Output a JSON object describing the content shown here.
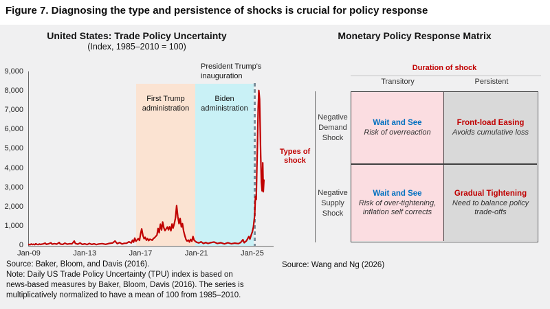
{
  "figure_title": "Figure 7. Diagnosing the type and persistence of shocks is crucial for policy response",
  "left_chart": {
    "source": "Source: Baker, Bloom, and Davis (2016).",
    "note_lines": [
      "Note: Daily US Trade Policy Uncertainty (TPU) index is based on",
      "news-based measures by Baker, Bloom, Davis (2016). The series is",
      "multiplicatively normalized to have a mean of 100 from 1985–2010."
    ]
  },
  "chart_data": {
    "type": "line",
    "title": "United States: Trade Policy Uncertainty",
    "subtitle": "(Index, 1985–2010 = 100)",
    "ylim": [
      0,
      9000
    ],
    "y_tick_step": 1000,
    "y_tick_labels": [
      "0",
      "1,000",
      "2,000",
      "3,000",
      "4,000",
      "5,000",
      "6,000",
      "7,000",
      "8,000",
      "9,000"
    ],
    "x_tick_labels": [
      "Jan-09",
      "Jan-13",
      "Jan-17",
      "Jan-21",
      "Jan-25"
    ],
    "x_tick_years": [
      2009,
      2013,
      2017,
      2021,
      2025
    ],
    "grid": false,
    "line_color": "#c00000",
    "regions": [
      {
        "label": "First Trump\nadministration",
        "from": 2016.7,
        "to": 2020.92,
        "color": "#fbe3d2"
      },
      {
        "label": "Biden\nadministration",
        "from": 2020.92,
        "to": 2025.1,
        "color": "#c9f1f6"
      }
    ],
    "vline": {
      "label": "President Trump's\ninauguration",
      "x": 2025.17,
      "color": "#7b8e9a"
    },
    "series": [
      {
        "name": "Daily US Trade Policy Uncertainty (TPU) index",
        "points": [
          [
            2009.0,
            75
          ],
          [
            2009.08,
            55
          ],
          [
            2009.17,
            95
          ],
          [
            2009.25,
            65
          ],
          [
            2009.33,
            85
          ],
          [
            2009.42,
            60
          ],
          [
            2009.5,
            110
          ],
          [
            2009.58,
            75
          ],
          [
            2009.67,
            65
          ],
          [
            2009.75,
            95
          ],
          [
            2009.83,
            70
          ],
          [
            2009.92,
            85
          ],
          [
            2010.0,
            95
          ],
          [
            2010.17,
            140
          ],
          [
            2010.25,
            80
          ],
          [
            2010.42,
            105
          ],
          [
            2010.58,
            155
          ],
          [
            2010.67,
            85
          ],
          [
            2010.83,
            115
          ],
          [
            2011.0,
            90
          ],
          [
            2011.17,
            170
          ],
          [
            2011.25,
            95
          ],
          [
            2011.42,
            75
          ],
          [
            2011.58,
            140
          ],
          [
            2011.75,
            85
          ],
          [
            2011.92,
            110
          ],
          [
            2012.08,
            100
          ],
          [
            2012.25,
            245
          ],
          [
            2012.33,
            120
          ],
          [
            2012.5,
            85
          ],
          [
            2012.67,
            150
          ],
          [
            2012.83,
            75
          ],
          [
            2013.0,
            105
          ],
          [
            2013.17,
            65
          ],
          [
            2013.33,
            125
          ],
          [
            2013.5,
            75
          ],
          [
            2013.67,
            105
          ],
          [
            2013.83,
            65
          ],
          [
            2014.0,
            95
          ],
          [
            2014.25,
            115
          ],
          [
            2014.5,
            80
          ],
          [
            2014.75,
            125
          ],
          [
            2015.0,
            150
          ],
          [
            2015.17,
            250
          ],
          [
            2015.33,
            110
          ],
          [
            2015.5,
            170
          ],
          [
            2015.67,
            95
          ],
          [
            2015.83,
            130
          ],
          [
            2016.0,
            135
          ],
          [
            2016.17,
            210
          ],
          [
            2016.33,
            150
          ],
          [
            2016.42,
            290
          ],
          [
            2016.5,
            190
          ],
          [
            2016.58,
            400
          ],
          [
            2016.67,
            240
          ],
          [
            2016.83,
            370
          ],
          [
            2016.92,
            280
          ],
          [
            2017.0,
            620
          ],
          [
            2017.08,
            880
          ],
          [
            2017.17,
            520
          ],
          [
            2017.25,
            370
          ],
          [
            2017.33,
            440
          ],
          [
            2017.42,
            290
          ],
          [
            2017.5,
            370
          ],
          [
            2017.58,
            270
          ],
          [
            2017.67,
            340
          ],
          [
            2017.83,
            290
          ],
          [
            2017.92,
            380
          ],
          [
            2018.0,
            420
          ],
          [
            2018.17,
            560
          ],
          [
            2018.25,
            900
          ],
          [
            2018.33,
            680
          ],
          [
            2018.42,
            1120
          ],
          [
            2018.5,
            820
          ],
          [
            2018.58,
            1230
          ],
          [
            2018.67,
            920
          ],
          [
            2018.75,
            790
          ],
          [
            2018.92,
            980
          ],
          [
            2019.0,
            830
          ],
          [
            2019.08,
            990
          ],
          [
            2019.17,
            780
          ],
          [
            2019.25,
            1130
          ],
          [
            2019.33,
            920
          ],
          [
            2019.42,
            1180
          ],
          [
            2019.5,
            1450
          ],
          [
            2019.58,
            2080
          ],
          [
            2019.67,
            1500
          ],
          [
            2019.75,
            1150
          ],
          [
            2019.83,
            1420
          ],
          [
            2019.92,
            980
          ],
          [
            2020.0,
            1150
          ],
          [
            2020.08,
            760
          ],
          [
            2020.17,
            520
          ],
          [
            2020.25,
            330
          ],
          [
            2020.33,
            250
          ],
          [
            2020.42,
            300
          ],
          [
            2020.5,
            200
          ],
          [
            2020.58,
            330
          ],
          [
            2020.67,
            240
          ],
          [
            2020.75,
            480
          ],
          [
            2020.83,
            300
          ],
          [
            2020.92,
            230
          ],
          [
            2021.0,
            190
          ],
          [
            2021.17,
            150
          ],
          [
            2021.33,
            210
          ],
          [
            2021.5,
            120
          ],
          [
            2021.67,
            170
          ],
          [
            2021.83,
            120
          ],
          [
            2022.0,
            160
          ],
          [
            2022.25,
            200
          ],
          [
            2022.5,
            120
          ],
          [
            2022.75,
            160
          ],
          [
            2023.0,
            100
          ],
          [
            2023.25,
            160
          ],
          [
            2023.5,
            105
          ],
          [
            2023.75,
            140
          ],
          [
            2024.0,
            115
          ],
          [
            2024.17,
            175
          ],
          [
            2024.33,
            320
          ],
          [
            2024.42,
            160
          ],
          [
            2024.58,
            260
          ],
          [
            2024.75,
            480
          ],
          [
            2024.83,
            350
          ],
          [
            2024.92,
            560
          ],
          [
            2025.0,
            720
          ],
          [
            2025.08,
            980
          ],
          [
            2025.17,
            1600
          ],
          [
            2025.22,
            2550
          ],
          [
            2025.28,
            2400
          ],
          [
            2025.33,
            4100
          ],
          [
            2025.38,
            5600
          ],
          [
            2025.42,
            7100
          ],
          [
            2025.47,
            8050
          ],
          [
            2025.52,
            7600
          ],
          [
            2025.56,
            6200
          ],
          [
            2025.6,
            4700
          ],
          [
            2025.65,
            3300
          ],
          [
            2025.7,
            2850
          ],
          [
            2025.75,
            4300
          ],
          [
            2025.79,
            2800
          ],
          [
            2025.83,
            3400
          ]
        ]
      }
    ]
  },
  "matrix": {
    "title": "Monetary Policy Response Matrix",
    "col_axis_label": "Duration of shock",
    "row_axis_label": "Types of\nshock",
    "col_headers": [
      "Transitory",
      "Persistent"
    ],
    "row_headers": [
      "Negative\nDemand\nShock",
      "Negative\nSupply\nShock"
    ],
    "cells": [
      {
        "action": "Wait and See",
        "detail": "Risk of overreaction",
        "action_color": "#0070c0",
        "bg": "#fbdde1"
      },
      {
        "action": "Front-load Easing",
        "detail": "Avoids cumulative loss",
        "action_color": "#c00000",
        "bg": "#d9d9d9"
      },
      {
        "action": "Wait and See",
        "detail": "Risk of over-tightening,\ninflation self corrects",
        "action_color": "#0070c0",
        "bg": "#fbdde1"
      },
      {
        "action": "Gradual Tightening",
        "detail": "Need to balance policy\ntrade-offs",
        "action_color": "#c00000",
        "bg": "#d9d9d9"
      }
    ],
    "source": "Source: Wang and Ng (2026)"
  }
}
